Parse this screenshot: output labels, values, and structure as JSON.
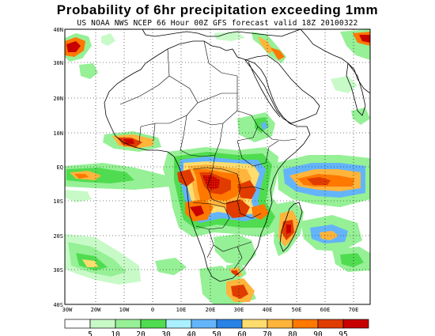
{
  "title": "Probability of 6hr precipitation exceeding 1mm",
  "subtitle": "US NOAA NWS NCEP 66 Hour 00Z GFS forecast valid 18Z 20100322",
  "lat_labels": [
    "40N",
    "30N",
    "20N",
    "10N",
    "EQ",
    "10S",
    "20S",
    "30S",
    "40S"
  ],
  "lon_labels": [
    "30W",
    "20W",
    "10W",
    "0",
    "10E",
    "20E",
    "30E",
    "40E",
    "50E",
    "60E",
    "70E"
  ],
  "colorbar": {
    "labels": [
      "5",
      "10",
      "20",
      "30",
      "40",
      "50",
      "60",
      "70",
      "80",
      "90",
      "95"
    ],
    "colors": [
      "#ffffff",
      "#c8fac8",
      "#96f096",
      "#50dc50",
      "#aaf0ff",
      "#64b4fa",
      "#2882e6",
      "#ffdc6e",
      "#ffb43c",
      "#ff7800",
      "#e13c00",
      "#c80000"
    ]
  }
}
